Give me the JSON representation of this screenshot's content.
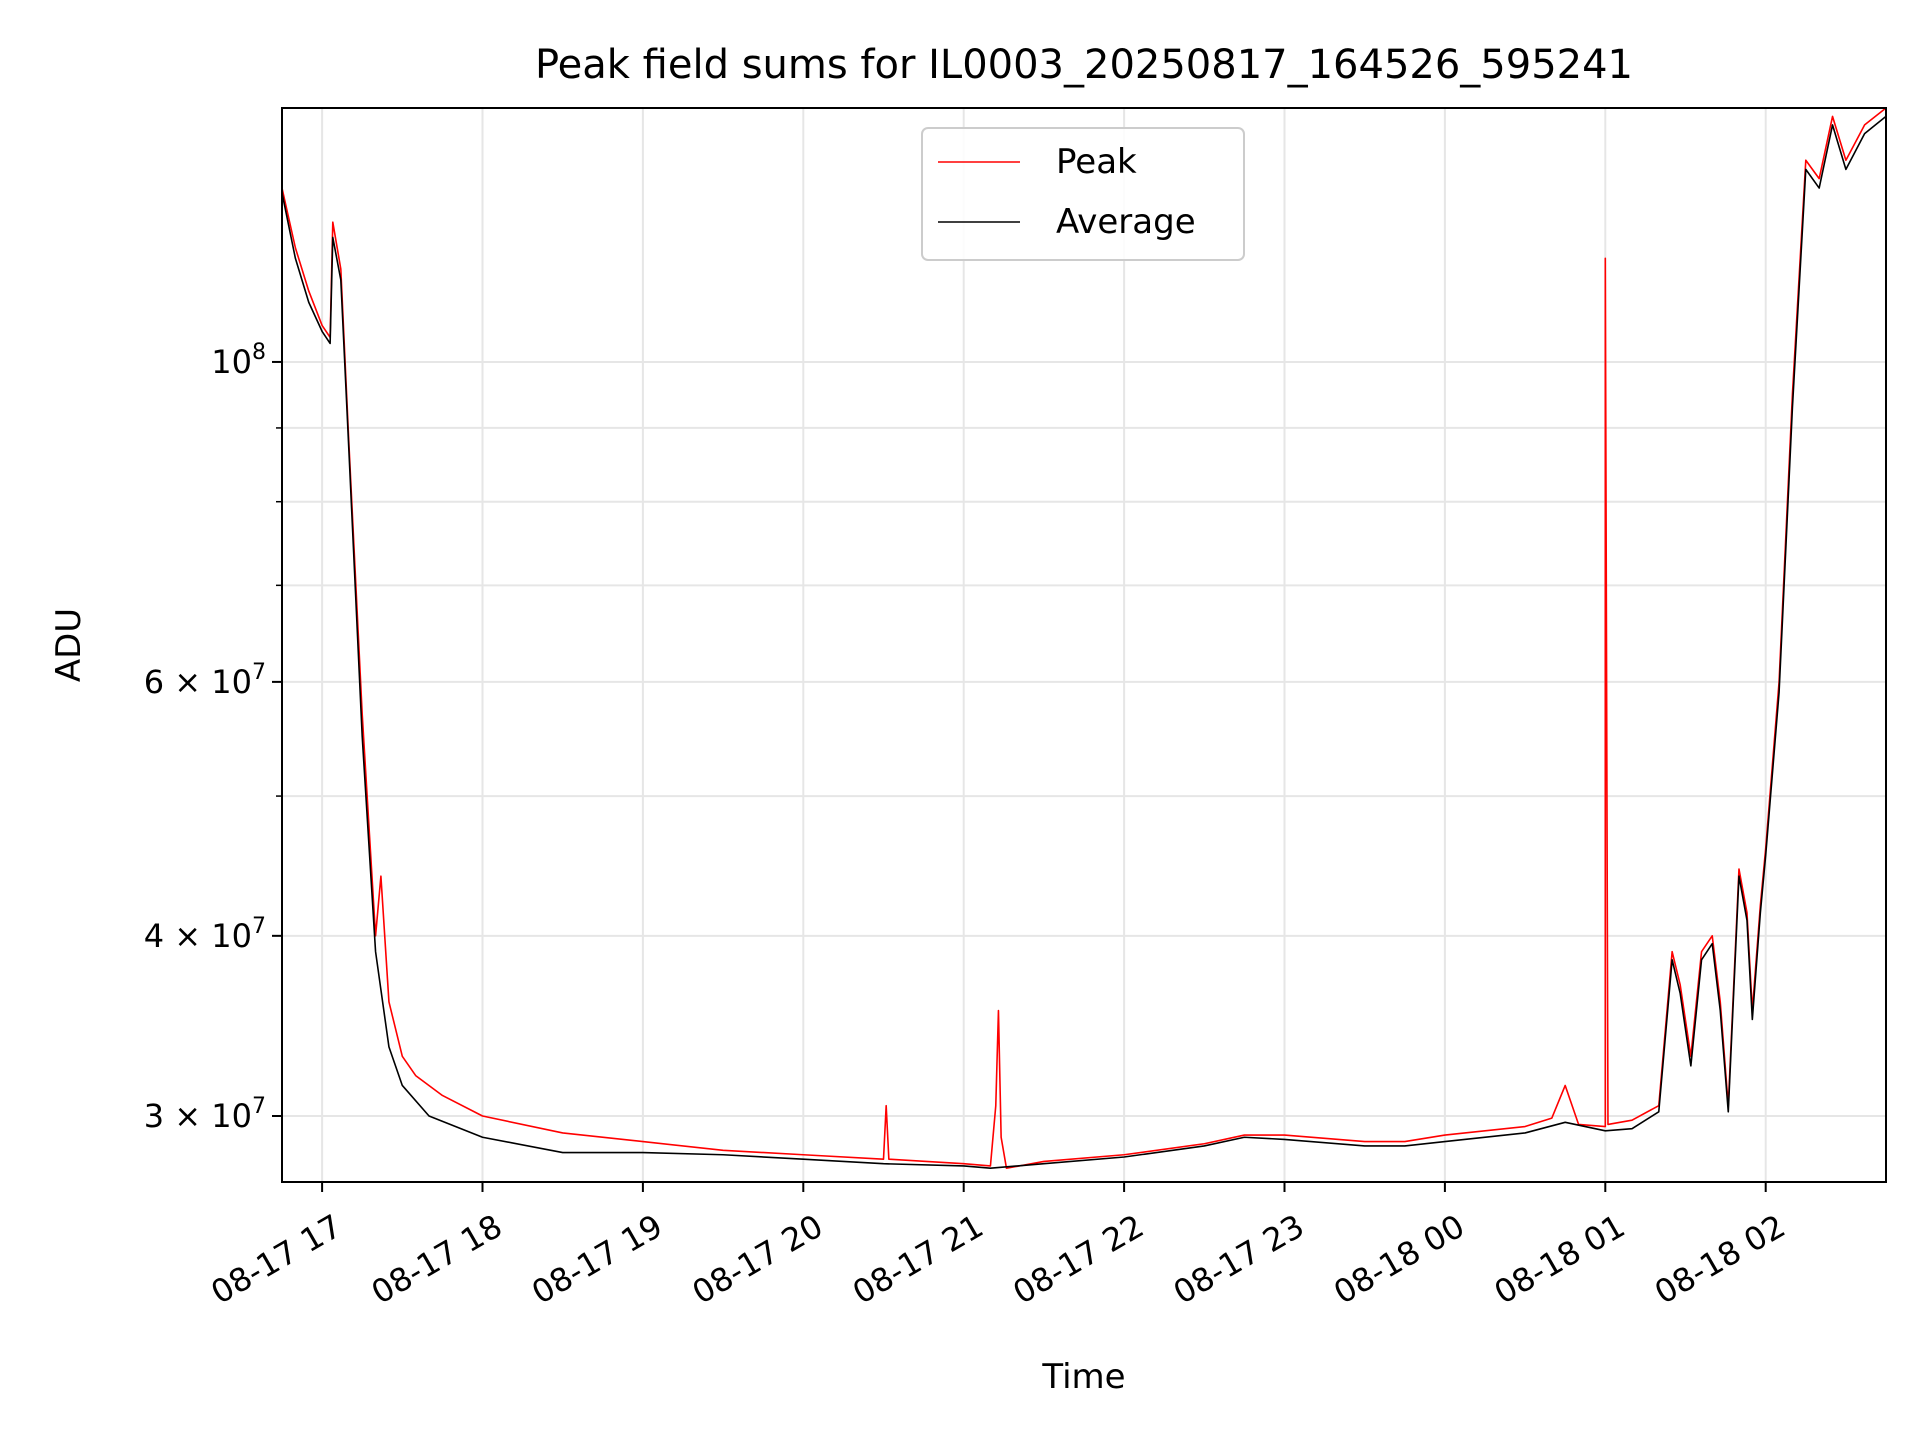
{
  "chart_data": {
    "type": "line",
    "title": "Peak field sums for IL0003_20250817_164526_595241",
    "xlabel": "Time",
    "ylabel": "ADU",
    "yscale": "log",
    "grid": true,
    "legend_position": "upper-center",
    "xlim": [
      "2025-08-17 16:45",
      "2025-08-18 02:45"
    ],
    "ylim": [
      27000000,
      150000000
    ],
    "x_ticks": [
      {
        "value": "2025-08-17 17:00",
        "label": "08-17 17"
      },
      {
        "value": "2025-08-17 18:00",
        "label": "08-17 18"
      },
      {
        "value": "2025-08-17 19:00",
        "label": "08-17 19"
      },
      {
        "value": "2025-08-17 20:00",
        "label": "08-17 20"
      },
      {
        "value": "2025-08-17 21:00",
        "label": "08-17 21"
      },
      {
        "value": "2025-08-17 22:00",
        "label": "08-17 22"
      },
      {
        "value": "2025-08-17 23:00",
        "label": "08-17 23"
      },
      {
        "value": "2025-08-18 00:00",
        "label": "08-18 00"
      },
      {
        "value": "2025-08-18 01:00",
        "label": "08-18 01"
      },
      {
        "value": "2025-08-18 02:00",
        "label": "08-18 02"
      }
    ],
    "y_major_ticks": [
      {
        "value": 30000000,
        "mantissa": "3",
        "exp": "7"
      },
      {
        "value": 40000000,
        "mantissa": "4",
        "exp": "7"
      },
      {
        "value": 60000000,
        "mantissa": "6",
        "exp": "7"
      },
      {
        "value": 100000000,
        "mantissa": "",
        "exp": "8"
      }
    ],
    "y_minor_ticks": [
      50000000,
      70000000,
      80000000,
      90000000
    ],
    "series": [
      {
        "name": "Peak",
        "color": "#ff0000",
        "points": [
          [
            "2025-08-17 16:45",
            132000000
          ],
          [
            "2025-08-17 16:50",
            120000000
          ],
          [
            "2025-08-17 16:55",
            112000000
          ],
          [
            "2025-08-17 17:00",
            106000000
          ],
          [
            "2025-08-17 17:03",
            104000000
          ],
          [
            "2025-08-17 17:04",
            125000000
          ],
          [
            "2025-08-17 17:07",
            116000000
          ],
          [
            "2025-08-17 17:10",
            88000000
          ],
          [
            "2025-08-17 17:15",
            57000000
          ],
          [
            "2025-08-17 17:20",
            40000000
          ],
          [
            "2025-08-17 17:22",
            44000000
          ],
          [
            "2025-08-17 17:25",
            36000000
          ],
          [
            "2025-08-17 17:30",
            33000000
          ],
          [
            "2025-08-17 17:35",
            32000000
          ],
          [
            "2025-08-17 17:45",
            31000000
          ],
          [
            "2025-08-17 18:00",
            30000000
          ],
          [
            "2025-08-17 18:30",
            29200000
          ],
          [
            "2025-08-17 19:00",
            28800000
          ],
          [
            "2025-08-17 19:30",
            28400000
          ],
          [
            "2025-08-17 20:00",
            28200000
          ],
          [
            "2025-08-17 20:30",
            28000000
          ],
          [
            "2025-08-17 20:31",
            30500000
          ],
          [
            "2025-08-17 20:32",
            28000000
          ],
          [
            "2025-08-17 21:00",
            27800000
          ],
          [
            "2025-08-17 21:10",
            27700000
          ],
          [
            "2025-08-17 21:12",
            30500000
          ],
          [
            "2025-08-17 21:13",
            35500000
          ],
          [
            "2025-08-17 21:14",
            29000000
          ],
          [
            "2025-08-17 21:16",
            27600000
          ],
          [
            "2025-08-17 21:30",
            27900000
          ],
          [
            "2025-08-17 22:00",
            28200000
          ],
          [
            "2025-08-17 22:30",
            28700000
          ],
          [
            "2025-08-17 22:45",
            29100000
          ],
          [
            "2025-08-17 23:00",
            29100000
          ],
          [
            "2025-08-17 23:30",
            28800000
          ],
          [
            "2025-08-17 23:45",
            28800000
          ],
          [
            "2025-08-18 00:00",
            29100000
          ],
          [
            "2025-08-18 00:30",
            29500000
          ],
          [
            "2025-08-18 00:40",
            29900000
          ],
          [
            "2025-08-18 00:45",
            31500000
          ],
          [
            "2025-08-18 00:50",
            29600000
          ],
          [
            "2025-08-18 01:00",
            29500000
          ],
          [
            "2025-08-18 01:00",
            118000000
          ],
          [
            "2025-08-18 01:01",
            29600000
          ],
          [
            "2025-08-18 01:10",
            29800000
          ],
          [
            "2025-08-18 01:20",
            30500000
          ],
          [
            "2025-08-18 01:25",
            39000000
          ],
          [
            "2025-08-18 01:28",
            37000000
          ],
          [
            "2025-08-18 01:32",
            33000000
          ],
          [
            "2025-08-18 01:36",
            39000000
          ],
          [
            "2025-08-18 01:40",
            40000000
          ],
          [
            "2025-08-18 01:43",
            36000000
          ],
          [
            "2025-08-18 01:46",
            30500000
          ],
          [
            "2025-08-18 01:50",
            44500000
          ],
          [
            "2025-08-18 01:53",
            41500000
          ],
          [
            "2025-08-18 01:55",
            35500000
          ],
          [
            "2025-08-18 01:58",
            42000000
          ],
          [
            "2025-08-18 02:00",
            46000000
          ],
          [
            "2025-08-18 02:05",
            60000000
          ],
          [
            "2025-08-18 02:10",
            95000000
          ],
          [
            "2025-08-18 02:15",
            138000000
          ],
          [
            "2025-08-18 02:20",
            134000000
          ],
          [
            "2025-08-18 02:25",
            148000000
          ],
          [
            "2025-08-18 02:30",
            138000000
          ],
          [
            "2025-08-18 02:37",
            146000000
          ],
          [
            "2025-08-18 02:45",
            150000000
          ]
        ]
      },
      {
        "name": "Average",
        "color": "#000000",
        "points": [
          [
            "2025-08-17 16:45",
            131000000
          ],
          [
            "2025-08-17 16:50",
            118000000
          ],
          [
            "2025-08-17 16:55",
            110000000
          ],
          [
            "2025-08-17 17:00",
            105000000
          ],
          [
            "2025-08-17 17:03",
            103000000
          ],
          [
            "2025-08-17 17:04",
            122000000
          ],
          [
            "2025-08-17 17:07",
            114000000
          ],
          [
            "2025-08-17 17:10",
            87000000
          ],
          [
            "2025-08-17 17:15",
            55000000
          ],
          [
            "2025-08-17 17:20",
            39000000
          ],
          [
            "2025-08-17 17:25",
            33500000
          ],
          [
            "2025-08-17 17:30",
            31500000
          ],
          [
            "2025-08-17 17:40",
            30000000
          ],
          [
            "2025-08-17 18:00",
            29000000
          ],
          [
            "2025-08-17 18:30",
            28300000
          ],
          [
            "2025-08-17 19:00",
            28300000
          ],
          [
            "2025-08-17 19:30",
            28200000
          ],
          [
            "2025-08-17 20:00",
            28000000
          ],
          [
            "2025-08-17 20:30",
            27800000
          ],
          [
            "2025-08-17 21:00",
            27700000
          ],
          [
            "2025-08-17 21:10",
            27600000
          ],
          [
            "2025-08-17 21:30",
            27800000
          ],
          [
            "2025-08-17 22:00",
            28100000
          ],
          [
            "2025-08-17 22:30",
            28600000
          ],
          [
            "2025-08-17 22:45",
            29000000
          ],
          [
            "2025-08-17 23:00",
            28900000
          ],
          [
            "2025-08-17 23:30",
            28600000
          ],
          [
            "2025-08-17 23:45",
            28600000
          ],
          [
            "2025-08-18 00:00",
            28800000
          ],
          [
            "2025-08-18 00:30",
            29200000
          ],
          [
            "2025-08-18 00:45",
            29700000
          ],
          [
            "2025-08-18 01:00",
            29300000
          ],
          [
            "2025-08-18 01:10",
            29400000
          ],
          [
            "2025-08-18 01:20",
            30200000
          ],
          [
            "2025-08-18 01:25",
            38500000
          ],
          [
            "2025-08-18 01:28",
            36500000
          ],
          [
            "2025-08-18 01:32",
            32500000
          ],
          [
            "2025-08-18 01:36",
            38500000
          ],
          [
            "2025-08-18 01:40",
            39500000
          ],
          [
            "2025-08-18 01:43",
            35500000
          ],
          [
            "2025-08-18 01:46",
            30200000
          ],
          [
            "2025-08-18 01:50",
            44000000
          ],
          [
            "2025-08-18 01:53",
            41000000
          ],
          [
            "2025-08-18 01:55",
            35000000
          ],
          [
            "2025-08-18 01:58",
            41500000
          ],
          [
            "2025-08-18 02:00",
            45500000
          ],
          [
            "2025-08-18 02:05",
            59000000
          ],
          [
            "2025-08-18 02:10",
            93000000
          ],
          [
            "2025-08-18 02:15",
            136000000
          ],
          [
            "2025-08-18 02:20",
            132000000
          ],
          [
            "2025-08-18 02:25",
            146000000
          ],
          [
            "2025-08-18 02:30",
            136000000
          ],
          [
            "2025-08-18 02:37",
            144000000
          ],
          [
            "2025-08-18 02:45",
            148000000
          ]
        ]
      }
    ]
  }
}
